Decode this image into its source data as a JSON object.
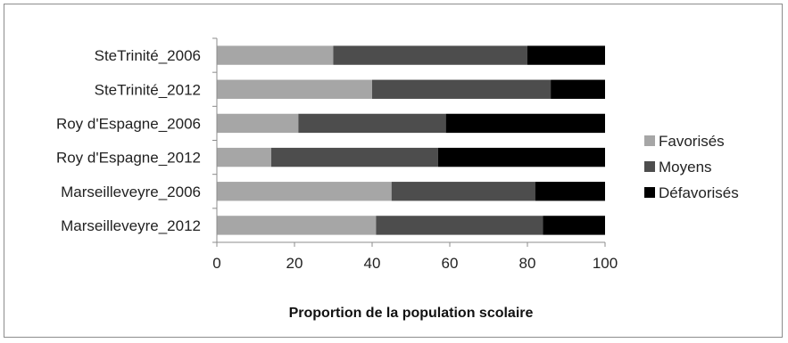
{
  "chart_data": {
    "type": "bar",
    "orientation": "horizontal",
    "stacked": true,
    "title": "",
    "xlabel": "Proportion de la population scolaire",
    "ylabel": "",
    "xlim": [
      0,
      100
    ],
    "xticks": [
      0,
      20,
      40,
      60,
      80,
      100
    ],
    "grid": false,
    "legend_position": "right",
    "categories": [
      "SteTrinité_2006",
      "SteTrinité_2012",
      "Roy d'Espagne_2006",
      "Roy d'Espagne_2012",
      "Marseilleveyre_2006",
      "Marseilleveyre_2012"
    ],
    "series": [
      {
        "name": "Favorisés",
        "color": "#a6a6a6",
        "values": [
          30,
          40,
          21,
          14,
          45,
          41
        ]
      },
      {
        "name": "Moyens",
        "color": "#4d4d4d",
        "values": [
          50,
          46,
          38,
          43,
          37,
          43
        ]
      },
      {
        "name": "Défavorisés",
        "color": "#000000",
        "values": [
          20,
          14,
          41,
          43,
          18,
          16
        ]
      }
    ]
  }
}
